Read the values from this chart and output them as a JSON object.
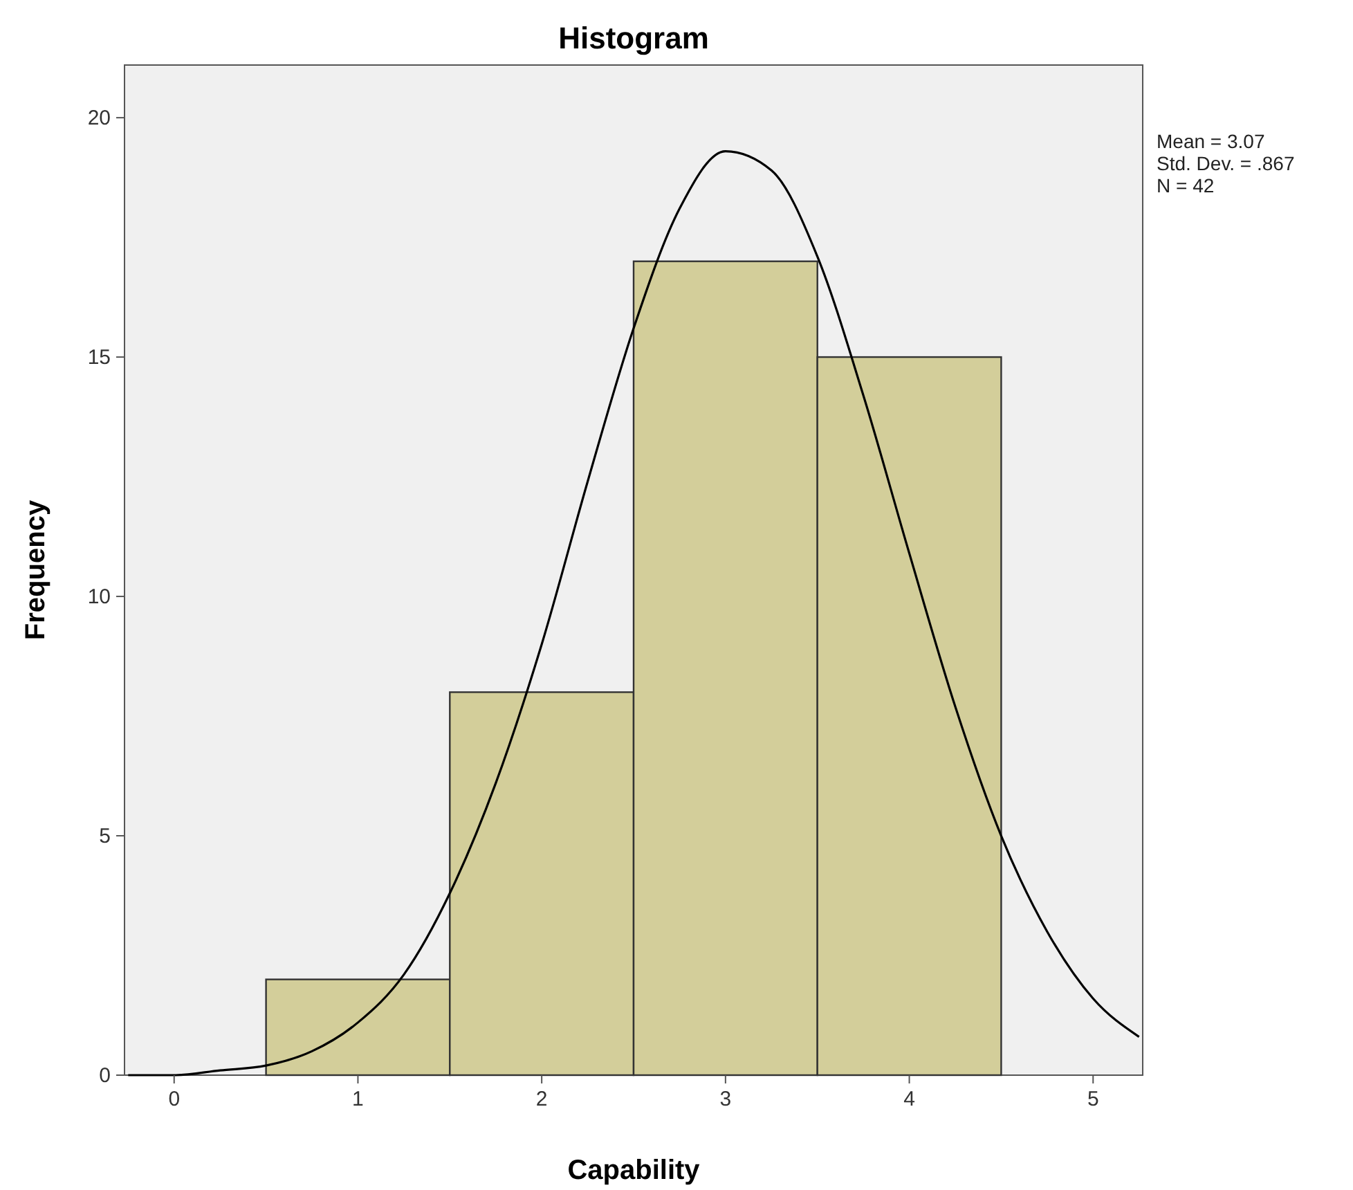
{
  "chart_data": {
    "type": "histogram",
    "title": "Histogram",
    "xlabel": "Capability",
    "ylabel": "Frequency",
    "bins": [
      0.5,
      1.5,
      2.5,
      3.5,
      4.5
    ],
    "values": [
      2,
      8,
      17,
      15
    ],
    "color": "#d3ce9a",
    "series": [
      {
        "type": "line",
        "color": "#000000",
        "x": [
          -0.25,
          0,
          0.25,
          0.5,
          0.75,
          1,
          1.25,
          1.5,
          1.75,
          2,
          2.25,
          2.5,
          2.75,
          3,
          3.25,
          3.5,
          3.75,
          4,
          4.25,
          4.5,
          4.75,
          5,
          5.25
        ],
        "values": [
          0.0,
          0.0,
          0.1,
          0.2,
          0.5,
          1.1,
          2.1,
          3.8,
          6.1,
          9.0,
          12.4,
          15.6,
          18.1,
          19.3,
          18.9,
          17.1,
          14.2,
          10.9,
          7.7,
          5.0,
          3.0,
          1.6,
          0.8
        ]
      }
    ],
    "xlim": [
      -0.27,
      5.27
    ],
    "ylim": [
      0,
      21.1
    ],
    "xticks": [
      0,
      1,
      2,
      3,
      4,
      5
    ],
    "yticks": [
      0,
      5,
      10,
      15,
      20
    ],
    "grid": false,
    "annotations": [
      "Mean = 3.07",
      "Std. Dev. = .867",
      "N = 42"
    ]
  }
}
